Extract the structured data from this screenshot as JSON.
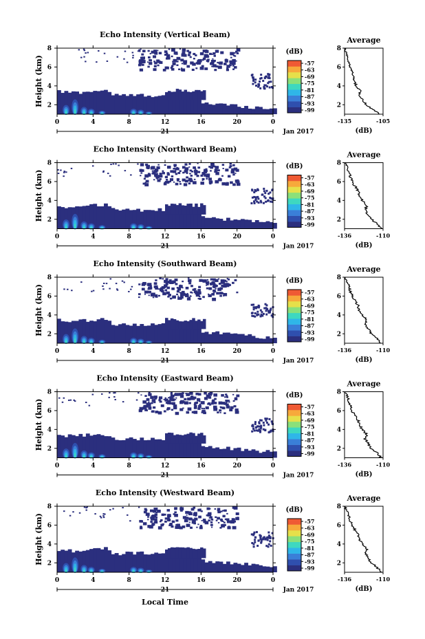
{
  "chart_data": {
    "type": "heatmap",
    "colorbar": {
      "unit": "(dB)",
      "ticks": [
        "-57",
        "-63",
        "-69",
        "-75",
        "-81",
        "-87",
        "-93",
        "-99"
      ],
      "colors": [
        "#2b2f7e",
        "#2f4fae",
        "#3a7fd8",
        "#2fb6e8",
        "#3ed8c0",
        "#8be07a",
        "#e6e04a",
        "#f7a93b",
        "#ef5a34"
      ]
    },
    "x_ticks": [
      "0",
      "4",
      "8",
      "12",
      "16",
      "20",
      "0"
    ],
    "date_day": "21",
    "date_label": "Jan 2017",
    "xlabel": "Local Time",
    "ylabel": "Height (km)",
    "y_ticks": [
      "2",
      "4",
      "6",
      "8"
    ],
    "ylim": [
      1,
      8
    ],
    "profile_title": "Average",
    "profile_xlabel": "(dB)",
    "panels": [
      {
        "title": "Echo Intensity (Vertical Beam)",
        "profile_xticks": [
          "-135",
          "-105"
        ],
        "profile": [
          [
            1.0,
            -107
          ],
          [
            1.5,
            -113
          ],
          [
            2.0,
            -118
          ],
          [
            2.5,
            -121
          ],
          [
            3.0,
            -123
          ],
          [
            3.5,
            -123
          ],
          [
            4.0,
            -126
          ],
          [
            4.5,
            -127
          ],
          [
            5.0,
            -128
          ],
          [
            5.5,
            -129
          ],
          [
            6.0,
            -131
          ],
          [
            6.5,
            -132
          ],
          [
            7.0,
            -133
          ],
          [
            7.5,
            -134
          ],
          [
            8.0,
            -135
          ]
        ]
      },
      {
        "title": "Echo Intensity (Northward Beam)",
        "profile_xticks": [
          "-136",
          "-110"
        ],
        "profile": [
          [
            1.0,
            -111
          ],
          [
            1.5,
            -114
          ],
          [
            2.0,
            -118
          ],
          [
            2.5,
            -120
          ],
          [
            3.0,
            -122
          ],
          [
            3.5,
            -121
          ],
          [
            4.0,
            -124
          ],
          [
            4.5,
            -126
          ],
          [
            5.0,
            -127
          ],
          [
            5.5,
            -129
          ],
          [
            6.0,
            -131
          ],
          [
            6.5,
            -132
          ],
          [
            7.0,
            -133
          ],
          [
            7.5,
            -134
          ],
          [
            8.0,
            -136
          ]
        ]
      },
      {
        "title": "Echo Intensity (Southward Beam)",
        "profile_xticks": [
          "-136",
          "-110"
        ],
        "profile": [
          [
            1.0,
            -111
          ],
          [
            1.5,
            -114
          ],
          [
            2.0,
            -118
          ],
          [
            2.5,
            -120
          ],
          [
            3.0,
            -122
          ],
          [
            3.5,
            -121
          ],
          [
            4.0,
            -124
          ],
          [
            4.5,
            -126
          ],
          [
            5.0,
            -127
          ],
          [
            5.5,
            -129
          ],
          [
            6.0,
            -131
          ],
          [
            6.5,
            -132
          ],
          [
            7.0,
            -133
          ],
          [
            7.5,
            -134
          ],
          [
            8.0,
            -136
          ]
        ]
      },
      {
        "title": "Echo Intensity (Eastward Beam)",
        "profile_xticks": [
          "-136",
          "-110"
        ],
        "profile": [
          [
            1.0,
            -111
          ],
          [
            1.5,
            -114
          ],
          [
            2.0,
            -118
          ],
          [
            2.5,
            -120
          ],
          [
            3.0,
            -122
          ],
          [
            3.5,
            -121
          ],
          [
            4.0,
            -124
          ],
          [
            4.5,
            -126
          ],
          [
            5.0,
            -127
          ],
          [
            5.5,
            -129
          ],
          [
            6.0,
            -131
          ],
          [
            6.5,
            -132
          ],
          [
            7.0,
            -133
          ],
          [
            7.5,
            -134
          ],
          [
            8.0,
            -136
          ]
        ]
      },
      {
        "title": "Echo Intensity (Westward Beam)",
        "profile_xticks": [
          "-136",
          "-110"
        ],
        "profile": [
          [
            1.0,
            -111
          ],
          [
            1.5,
            -114
          ],
          [
            2.0,
            -118
          ],
          [
            2.5,
            -120
          ],
          [
            3.0,
            -122
          ],
          [
            3.5,
            -121
          ],
          [
            4.0,
            -124
          ],
          [
            4.5,
            -126
          ],
          [
            5.0,
            -127
          ],
          [
            5.5,
            -129
          ],
          [
            6.0,
            -131
          ],
          [
            6.5,
            -132
          ],
          [
            7.0,
            -133
          ],
          [
            7.5,
            -134
          ],
          [
            8.0,
            -136
          ]
        ]
      }
    ]
  }
}
